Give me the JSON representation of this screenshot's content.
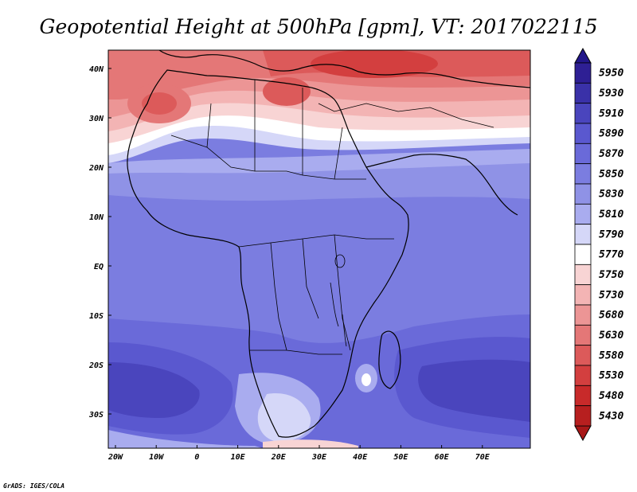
{
  "title": "Geopotential Height at 500hPa [gpm], VT: 2017022115",
  "credit": "GrADS: IGES/COLA",
  "map": {
    "lon_ticks": [
      "20W",
      "10W",
      "0",
      "10E",
      "20E",
      "30E",
      "40E",
      "50E",
      "60E",
      "70E"
    ],
    "lat_ticks": [
      "40N",
      "30N",
      "20N",
      "10N",
      "EQ",
      "10S",
      "20S",
      "30S"
    ]
  },
  "legend": {
    "levels": [
      "5950",
      "5930",
      "5910",
      "5890",
      "5870",
      "5850",
      "5830",
      "5810",
      "5790",
      "5770",
      "5750",
      "5730",
      "5680",
      "5630",
      "5580",
      "5530",
      "5480",
      "5430"
    ],
    "colors": [
      "#2e1f94",
      "#3a31a8",
      "#4a45bd",
      "#5a58cf",
      "#6a6ad9",
      "#7b7de0",
      "#8f92e6",
      "#a9acef",
      "#d5d7f8",
      "#ffffff",
      "#f8d4d4",
      "#f3b4b4",
      "#ec9595",
      "#e47777",
      "#dc5a5a",
      "#d33f3f",
      "#c82a2a",
      "#b71f1f"
    ],
    "top_arrow_color": "#22168a",
    "bottom_arrow_color": "#a81818"
  }
}
